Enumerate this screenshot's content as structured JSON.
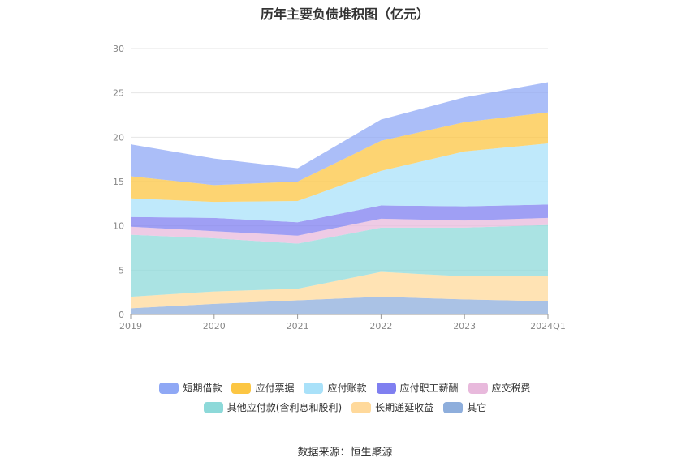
{
  "chart_data": {
    "type": "area",
    "stacked": true,
    "title": "历年主要负债堆积图（亿元）",
    "categories": [
      "2019",
      "2020",
      "2021",
      "2022",
      "2023",
      "2024Q1"
    ],
    "ylim": [
      0,
      30
    ],
    "yticks": [
      0,
      5,
      10,
      15,
      20,
      25,
      30
    ],
    "grid": true,
    "legend_position": "bottom",
    "series": [
      {
        "name": "其它",
        "color": "#8eaedc",
        "values": [
          0.7,
          1.2,
          1.6,
          2.0,
          1.7,
          1.5
        ]
      },
      {
        "name": "长期递延收益",
        "color": "#ffd99b",
        "values": [
          1.3,
          1.4,
          1.3,
          2.8,
          2.6,
          2.8
        ]
      },
      {
        "name": "其他应付款(含利息和股利)",
        "color": "#8dd9d9",
        "values": [
          7.0,
          6.0,
          5.1,
          5.0,
          5.5,
          5.8
        ]
      },
      {
        "name": "应交税费",
        "color": "#e8b9dc",
        "values": [
          0.9,
          0.8,
          0.9,
          1.0,
          0.8,
          0.8
        ]
      },
      {
        "name": "应付职工薪酬",
        "color": "#7f7ff0",
        "values": [
          1.1,
          1.5,
          1.5,
          1.5,
          1.6,
          1.5
        ]
      },
      {
        "name": "应付账款",
        "color": "#a9e1f9",
        "values": [
          2.1,
          1.8,
          2.4,
          3.9,
          6.2,
          6.9
        ]
      },
      {
        "name": "应付票据",
        "color": "#fcc643",
        "values": [
          2.5,
          1.9,
          2.2,
          3.4,
          3.3,
          3.5
        ]
      },
      {
        "name": "短期借款",
        "color": "#8fa8f5",
        "values": [
          3.6,
          3.0,
          1.5,
          2.4,
          2.8,
          3.4
        ]
      }
    ],
    "legend_order": [
      "短期借款",
      "应付票据",
      "应付账款",
      "应付职工薪酬",
      "应交税费",
      "其他应付款(含利息和股利)",
      "长期递延收益",
      "其它"
    ]
  },
  "source": "数据来源：恒生聚源"
}
